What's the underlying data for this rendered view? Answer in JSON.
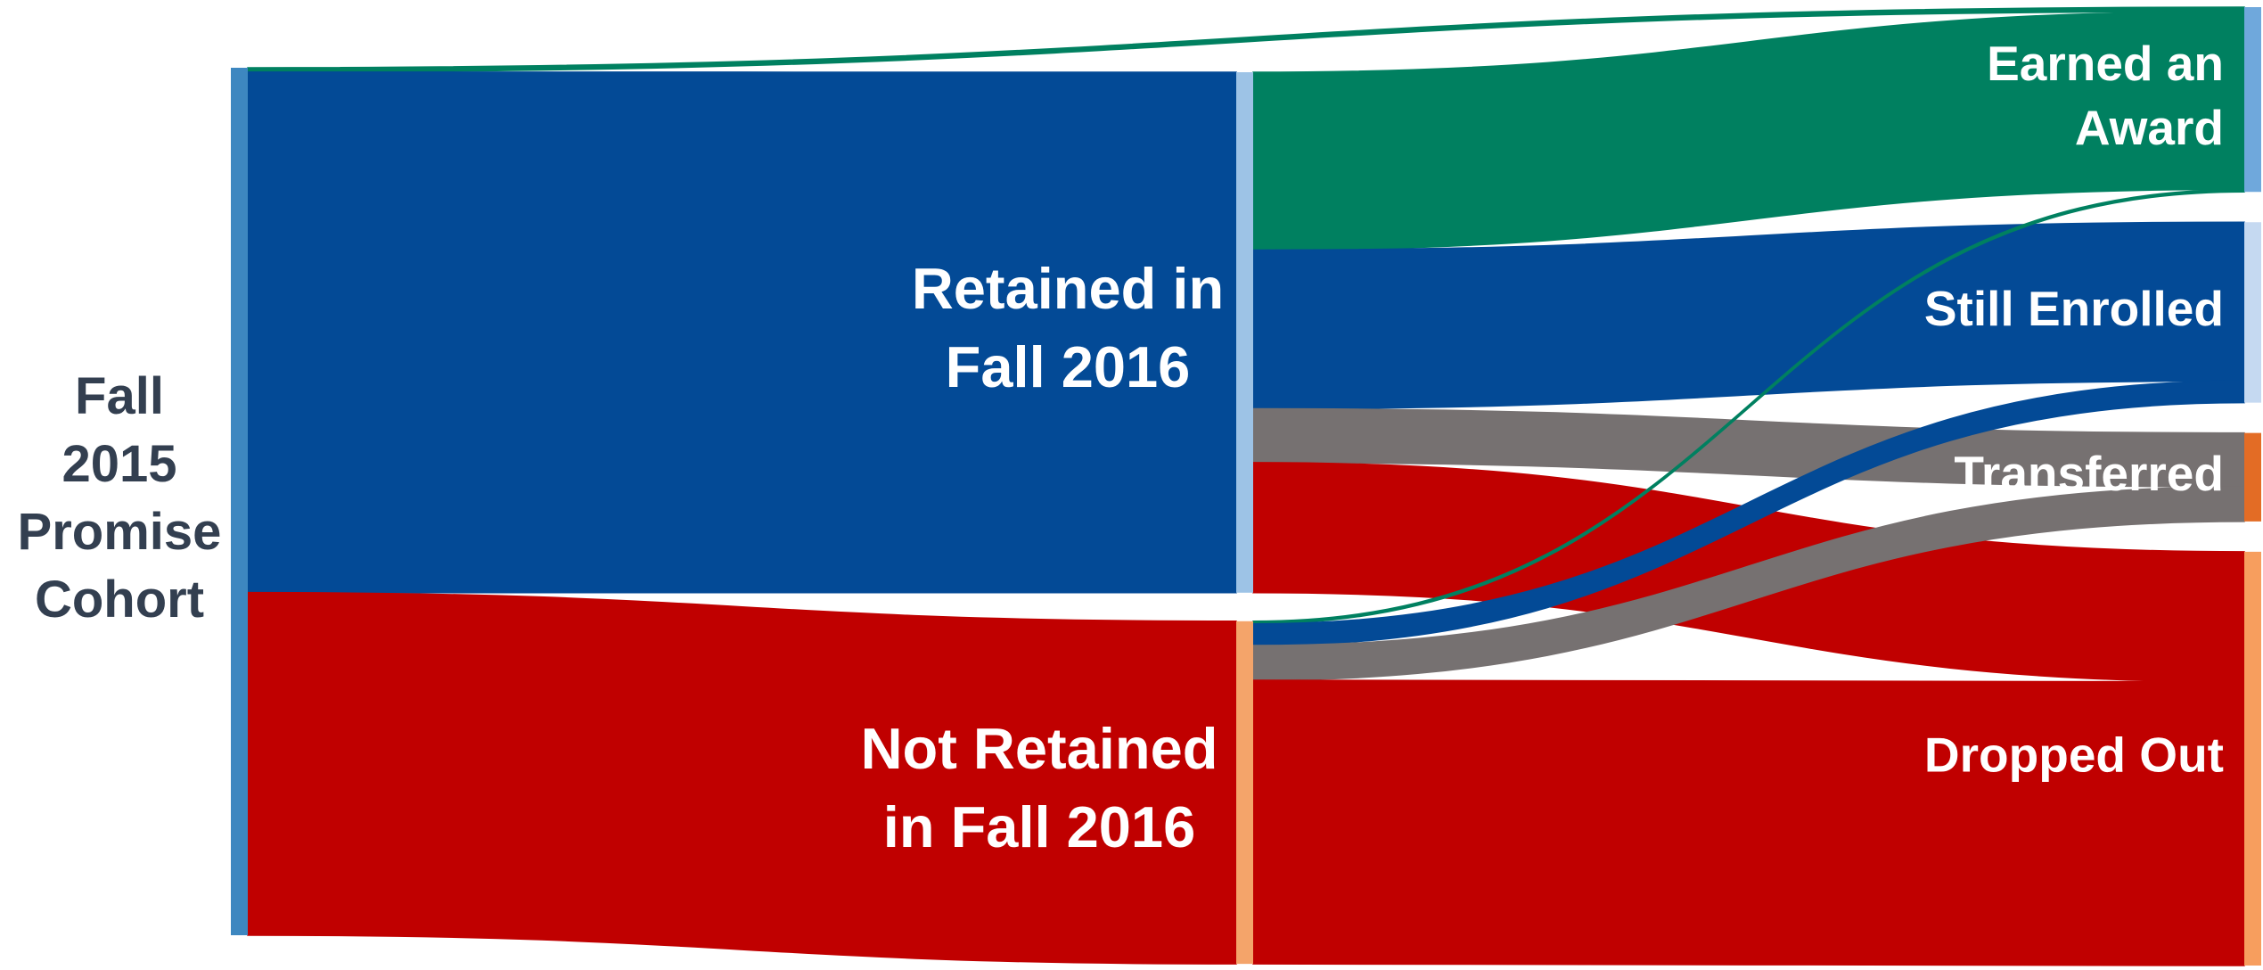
{
  "chart_data": {
    "type": "sankey",
    "nodes": [
      {
        "label_lines": [
          "Fall",
          "2015",
          "Promise",
          "Cohort"
        ],
        "column": 0,
        "color": "#3d87c0",
        "label_color": "#333f50"
      },
      {
        "label_lines": [
          "Retained in",
          "Fall 2016"
        ],
        "column": 1,
        "color": "#9dc3e6",
        "flow_color": "#034a96",
        "label_color": "#ffffff"
      },
      {
        "label_lines": [
          "Not Retained",
          "in Fall 2016"
        ],
        "column": 1,
        "color": "#f4a46a",
        "flow_color": "#c00000",
        "label_color": "#ffffff"
      },
      {
        "label_lines": [
          "Earned an",
          "Award"
        ],
        "column": 2,
        "color": "#6fa8dc",
        "flow_color": "#008060",
        "label_color": "#ffffff"
      },
      {
        "label_lines": [
          "Still Enrolled"
        ],
        "column": 2,
        "color": "#c5d9f1",
        "flow_color": "#034a96",
        "label_color": "#ffffff"
      },
      {
        "label_lines": [
          "Transferred"
        ],
        "column": 2,
        "color": "#e36c25",
        "flow_color": "#767171",
        "label_color": "#ffffff"
      },
      {
        "label_lines": [
          "Dropped Out"
        ],
        "column": 2,
        "color": "#f79e5e",
        "flow_color": "#c00000",
        "label_color": "#ffffff"
      }
    ],
    "links": [
      {
        "source": 0,
        "target": 3,
        "value": 0.5
      },
      {
        "source": 0,
        "target": 1,
        "value": 60
      },
      {
        "source": 0,
        "target": 2,
        "value": 39.5
      },
      {
        "source": 1,
        "target": 3,
        "value": 20.5
      },
      {
        "source": 1,
        "target": 4,
        "value": 18.3
      },
      {
        "source": 1,
        "target": 5,
        "value": 6.2
      },
      {
        "source": 1,
        "target": 6,
        "value": 15
      },
      {
        "source": 2,
        "target": 3,
        "value": 0.3
      },
      {
        "source": 2,
        "target": 4,
        "value": 2.5
      },
      {
        "source": 2,
        "target": 5,
        "value": 4
      },
      {
        "source": 2,
        "target": 6,
        "value": 32.7
      }
    ]
  }
}
